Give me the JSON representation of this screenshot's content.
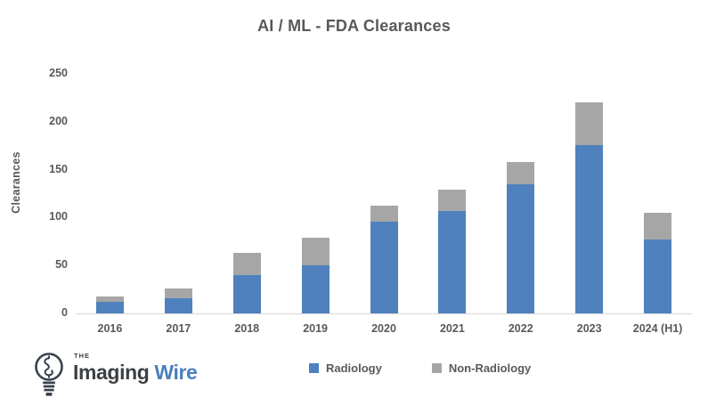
{
  "title": "AI / ML - FDA Clearances",
  "chart_data": {
    "type": "bar",
    "stacked": true,
    "title": "AI / ML - FDA Clearances",
    "xlabel": "",
    "ylabel": "Clearances",
    "ylim": [
      0,
      250
    ],
    "y_ticks": [
      0,
      50,
      100,
      150,
      200,
      250
    ],
    "grid": false,
    "legend_position": "bottom",
    "categories": [
      "2016",
      "2017",
      "2018",
      "2019",
      "2020",
      "2021",
      "2022",
      "2023",
      "2024 (H1)"
    ],
    "series": [
      {
        "name": "Radiology",
        "color": "#4e81bd",
        "values": [
          12,
          16,
          40,
          50,
          96,
          107,
          135,
          176,
          77
        ]
      },
      {
        "name": "Non-Radiology",
        "color": "#a6a6a6",
        "values": [
          6,
          10,
          23,
          29,
          16,
          22,
          23,
          44,
          28
        ]
      }
    ],
    "totals": [
      18,
      26,
      63,
      79,
      112,
      129,
      158,
      220,
      105
    ]
  },
  "logo": {
    "the": "THE",
    "imaging": "Imaging",
    "wire": "Wire",
    "icon": "lightbulb-icon",
    "text_color": "#3d4043",
    "accent_color": "#4a7fbe"
  },
  "colors": {
    "radiology": "#4e81bd",
    "non_radiology": "#a6a6a6",
    "axis_text": "#595959",
    "axis_line": "#d9d9d9",
    "logo_outline": "#39404f"
  }
}
